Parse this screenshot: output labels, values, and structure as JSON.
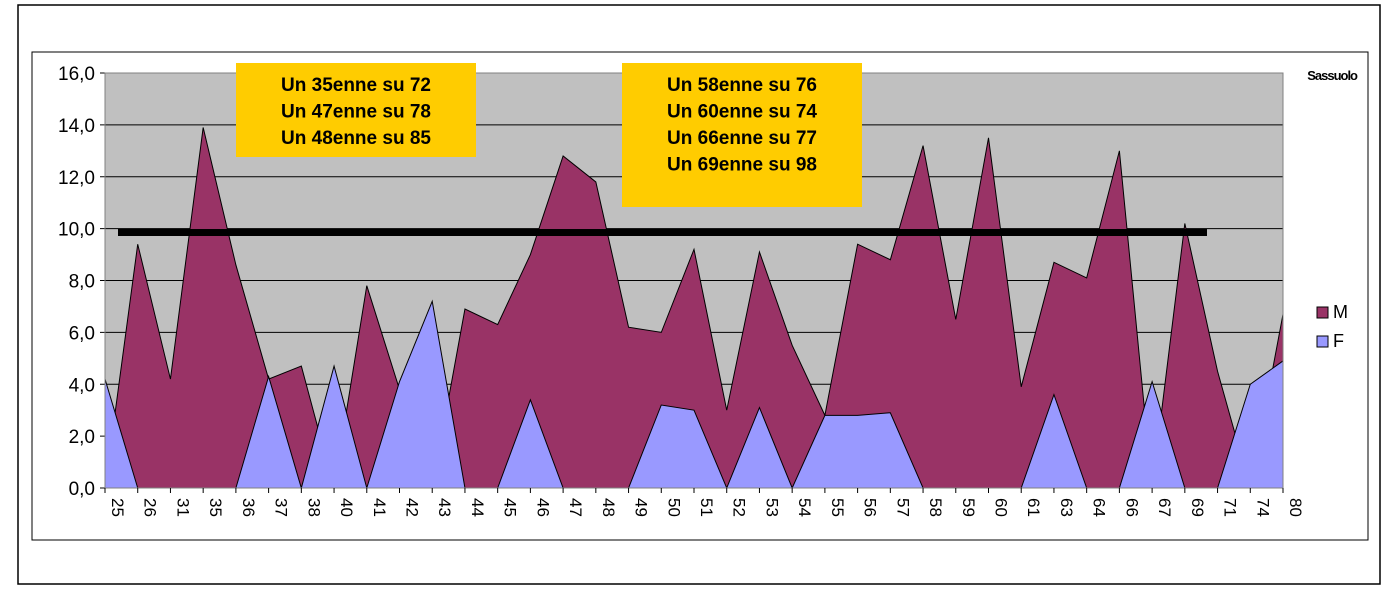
{
  "chart_data": {
    "type": "area",
    "title": "Sassuolo",
    "categories": [
      "25",
      "26",
      "31",
      "35",
      "36",
      "37",
      "38",
      "40",
      "41",
      "42",
      "43",
      "44",
      "45",
      "46",
      "47",
      "48",
      "49",
      "50",
      "51",
      "52",
      "53",
      "54",
      "55",
      "56",
      "57",
      "58",
      "59",
      "60",
      "61",
      "63",
      "64",
      "66",
      "67",
      "69",
      "71",
      "74",
      "80"
    ],
    "series": [
      {
        "name": "M",
        "color": "#993366",
        "values": [
          0,
          9.4,
          4.2,
          13.9,
          8.6,
          4.2,
          4.7,
          0,
          7.8,
          3.8,
          0,
          6.9,
          6.3,
          9.0,
          12.8,
          11.8,
          6.2,
          6.0,
          9.2,
          3.0,
          9.1,
          5.5,
          2.8,
          9.4,
          8.8,
          13.2,
          6.5,
          13.5,
          3.9,
          8.7,
          8.1,
          13.0,
          0,
          10.2,
          4.5,
          0,
          6.7
        ]
      },
      {
        "name": "F",
        "color": "#9999ff",
        "values": [
          4.2,
          0,
          0,
          0,
          0,
          4.3,
          0,
          4.7,
          0,
          4.1,
          7.2,
          0,
          0,
          3.4,
          0,
          0,
          0,
          3.2,
          3.0,
          0,
          3.1,
          0,
          2.8,
          2.8,
          2.9,
          0,
          0,
          0,
          0,
          3.6,
          0,
          0,
          4.1,
          0,
          0,
          4.0,
          4.9
        ]
      }
    ],
    "ylim": [
      0,
      16
    ],
    "yticks": [
      {
        "value": 0,
        "label": "0,0"
      },
      {
        "value": 2,
        "label": "2,0"
      },
      {
        "value": 4,
        "label": "4,0"
      },
      {
        "value": 6,
        "label": "6,0"
      },
      {
        "value": 8,
        "label": "8,0"
      },
      {
        "value": 10,
        "label": "10,0"
      },
      {
        "value": 12,
        "label": "12,0"
      },
      {
        "value": 14,
        "label": "14,0"
      },
      {
        "value": 16,
        "label": "16,0"
      }
    ],
    "grid": true,
    "background": "#c0c0c0",
    "reference_line": {
      "value": 9.85,
      "color": "#000000"
    },
    "annotations": [
      [
        "Un 35enne su 72",
        "Un 47enne su 78",
        "Un 48enne su 85"
      ],
      [
        "Un 58enne su 76",
        "Un 60enne su 74",
        "Un 66enne su 77",
        "Un 69enne su 98"
      ]
    ]
  }
}
